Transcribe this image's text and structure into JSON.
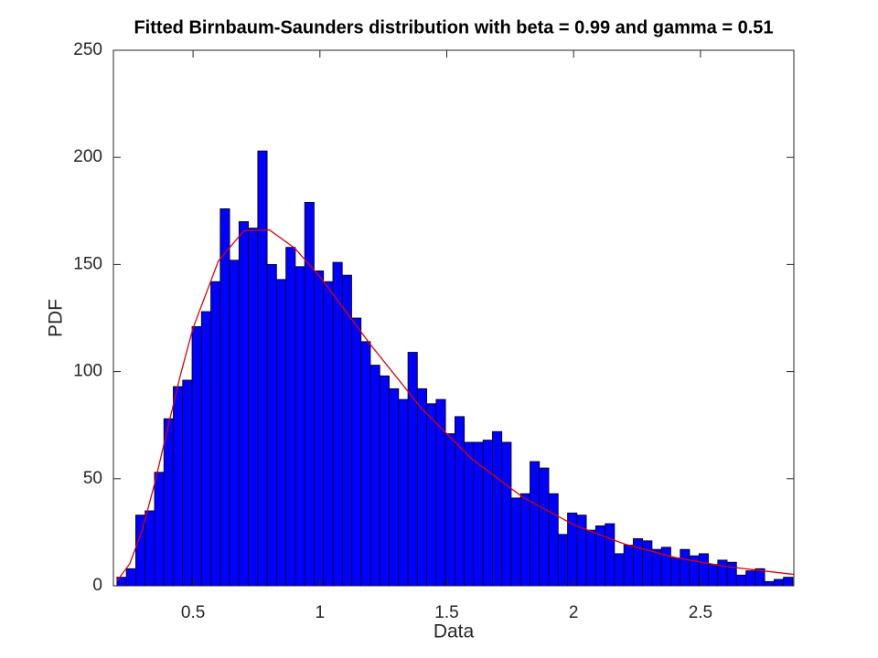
{
  "chart_data": {
    "type": "histogram",
    "title": "Fitted Birnbaum-Saunders distribution with beta = 0.99 and gamma = 0.51",
    "x_label": "Data",
    "y_label": "PDF",
    "bins": [
      0.2,
      0.237,
      0.274,
      0.311,
      0.348,
      0.385,
      0.422,
      0.459,
      0.496,
      0.533,
      0.57,
      0.607,
      0.644,
      0.681,
      0.718,
      0.755,
      0.792,
      0.829,
      0.866,
      0.903,
      0.94,
      0.977,
      1.014,
      1.051,
      1.088,
      1.125,
      1.162,
      1.199,
      1.236,
      1.273,
      1.31,
      1.347,
      1.384,
      1.421,
      1.458,
      1.495,
      1.532,
      1.569,
      1.606,
      1.643,
      1.68,
      1.717,
      1.754,
      1.791,
      1.828,
      1.865,
      1.902,
      1.939,
      1.976,
      2.013,
      2.05,
      2.087,
      2.124,
      2.161,
      2.198,
      2.235,
      2.272,
      2.309,
      2.346,
      2.383,
      2.42,
      2.457,
      2.494,
      2.531,
      2.568,
      2.605,
      2.642,
      2.679,
      2.716,
      2.753,
      2.79,
      2.827,
      2.864
    ],
    "counts": [
      4,
      8,
      33,
      35,
      53,
      78,
      93,
      96,
      121,
      128,
      142,
      176,
      152,
      170,
      167,
      203,
      150,
      143,
      158,
      149,
      179,
      147,
      142,
      151,
      145,
      125,
      114,
      103,
      98,
      92,
      87,
      109,
      92,
      85,
      87,
      71,
      79,
      67,
      67,
      68,
      72,
      67,
      41,
      43,
      58,
      55,
      43,
      24,
      34,
      33,
      26,
      28,
      29,
      15,
      19,
      22,
      21,
      17,
      18,
      13,
      17,
      14,
      15,
      10,
      12,
      11,
      5,
      7,
      8,
      2,
      3,
      4
    ],
    "color": "#0000ff",
    "fit": {
      "color": "#e00000",
      "x": [
        0.2,
        0.25,
        0.3,
        0.35,
        0.4,
        0.45,
        0.5,
        0.6,
        0.7,
        0.8,
        0.9,
        1.0,
        1.2,
        1.4,
        1.6,
        1.8,
        2.0,
        2.2,
        2.4,
        2.6,
        2.868
      ],
      "values": [
        2.3,
        10.2,
        26.1,
        48.4,
        73.6,
        98.3,
        120.4,
        151.7,
        165.7,
        166.2,
        157.7,
        144.3,
        112.5,
        82.9,
        59.1,
        41.3,
        28.5,
        19.5,
        13.2,
        9.0,
        5.3
      ]
    },
    "xlim": [
      0.186,
      2.868
    ],
    "ylim": [
      0,
      250
    ],
    "xticks": [
      0.5,
      1,
      1.5,
      2,
      2.5
    ],
    "yticks": [
      0,
      50,
      100,
      150,
      200,
      250
    ]
  }
}
